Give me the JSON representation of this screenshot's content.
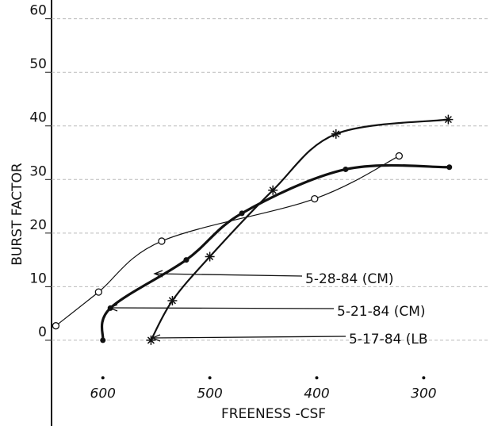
{
  "chart_data": {
    "type": "line",
    "x_label": "FREENESS -CSF",
    "y_label": "BURST FACTOR",
    "xlim": [
      648,
      238
    ],
    "ylim": [
      -16,
      63.5
    ],
    "xticks": [
      600,
      500,
      400,
      300
    ],
    "yticks": [
      0,
      10,
      20,
      30,
      40,
      50,
      60
    ],
    "grid": true,
    "series": [
      {
        "name": "5-28-84 (CM)",
        "color": "#111",
        "marker": "o",
        "x": [
          644,
          604,
          545,
          402,
          323
        ],
        "values": [
          2.7,
          9,
          18.5,
          26.4,
          34.4
        ]
      },
      {
        "name": "5-21-84 (CM)",
        "color": "#111",
        "marker": "dot",
        "x": [
          600,
          593,
          522,
          470,
          373,
          276
        ],
        "values": [
          0,
          6,
          15,
          23.7,
          31.9,
          32.3
        ]
      },
      {
        "name": "5-17-84 (LB",
        "color": "#111",
        "marker": "*",
        "x": [
          555,
          535,
          500,
          441,
          382,
          277
        ],
        "values": [
          0,
          7.4,
          15.6,
          28,
          38.5,
          41.2
        ]
      }
    ]
  }
}
